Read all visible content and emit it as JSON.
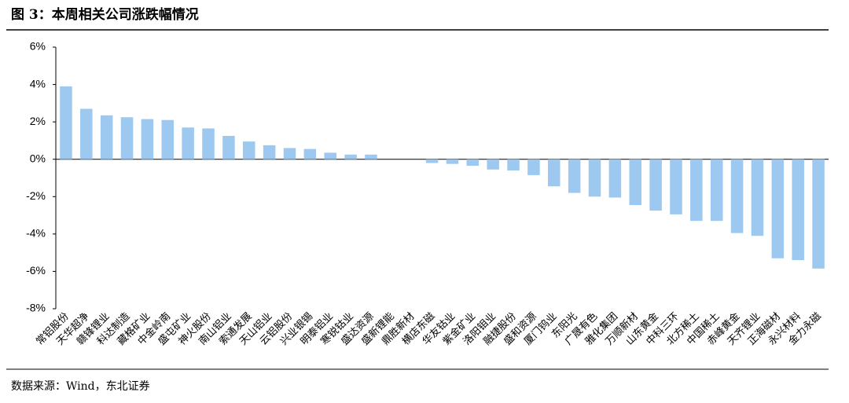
{
  "chart_data": {
    "type": "bar",
    "title": "图 3：本周相关公司涨跌幅情况",
    "source": "数据来源：Wind，东北证券",
    "categories": [
      "常铝股份",
      "天华超净",
      "赣锋锂业",
      "科达制造",
      "藏格矿业",
      "中金岭南",
      "盛屯矿业",
      "神火股份",
      "南山铝业",
      "索通发展",
      "天山铝业",
      "云铝股份",
      "兴业银锡",
      "明泰铝业",
      "寒锐钴业",
      "盛达资源",
      "盛新锂能",
      "鼎胜新材",
      "横店东磁",
      "华友钴业",
      "紫金矿业",
      "洛阳钼业",
      "融捷股份",
      "盛和资源",
      "厦门钨业",
      "东阳光",
      "广晟有色",
      "雅化集团",
      "万顺新材",
      "山东黄金",
      "中科三环",
      "北方稀土",
      "中国稀土",
      "赤峰黄金",
      "天齐锂业",
      "正海磁材",
      "永兴材料",
      "金力永磁"
    ],
    "values": [
      3.9,
      2.7,
      2.35,
      2.25,
      2.15,
      2.1,
      1.7,
      1.65,
      1.25,
      0.95,
      0.75,
      0.6,
      0.55,
      0.35,
      0.25,
      0.25,
      0,
      0,
      -0.2,
      -0.25,
      -0.35,
      -0.55,
      -0.6,
      -0.85,
      -1.45,
      -1.8,
      -2.0,
      -2.05,
      -2.45,
      -2.75,
      -2.95,
      -3.3,
      -3.3,
      -3.95,
      -4.1,
      -5.3,
      -5.4,
      -5.85
    ],
    "color": "#9dc9f0",
    "ylim": [
      -8,
      6
    ],
    "yticks": [
      {
        "value": -8,
        "label": "-8%"
      },
      {
        "value": -6,
        "label": "-6%"
      },
      {
        "value": -4,
        "label": "-4%"
      },
      {
        "value": -2,
        "label": "-2%"
      },
      {
        "value": 0,
        "label": "0%"
      },
      {
        "value": 2,
        "label": "2%"
      },
      {
        "value": 4,
        "label": "4%"
      },
      {
        "value": 6,
        "label": "6%"
      }
    ]
  }
}
